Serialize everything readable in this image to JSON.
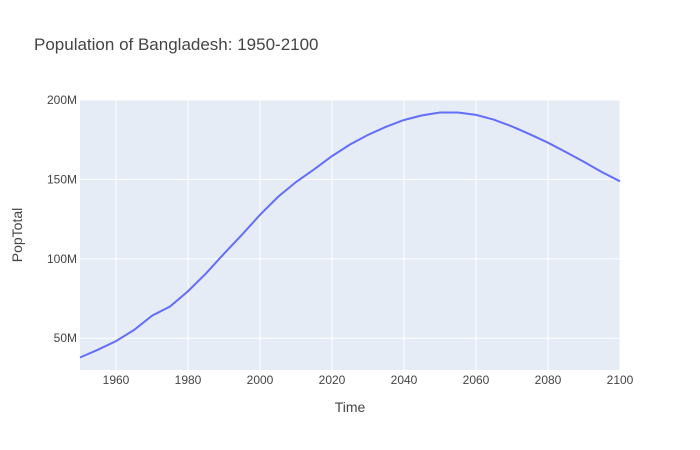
{
  "chart_data": {
    "type": "line",
    "title": "Population of Bangladesh: 1950-2100",
    "xlabel": "Time",
    "ylabel": "PopTotal",
    "xlim": [
      1950,
      2100
    ],
    "ylim": [
      30,
      200
    ],
    "x_ticks": [
      1960,
      1980,
      2000,
      2020,
      2040,
      2060,
      2080,
      2100
    ],
    "x_tick_labels": [
      "1960",
      "1980",
      "2000",
      "2020",
      "2040",
      "2060",
      "2080",
      "2100"
    ],
    "y_ticks": [
      50,
      100,
      150,
      200
    ],
    "y_tick_labels": [
      "50M",
      "100M",
      "150M",
      "200M"
    ],
    "grid": true,
    "plot_background": "#e5ecf6",
    "series_color": "#636efa",
    "series": [
      {
        "x": [
          1950,
          1955,
          1960,
          1965,
          1970,
          1975,
          1980,
          1985,
          1990,
          1995,
          2000,
          2005,
          2010,
          2015,
          2020,
          2025,
          2030,
          2035,
          2040,
          2045,
          2050,
          2055,
          2060,
          2065,
          2070,
          2075,
          2080,
          2085,
          2090,
          2095,
          2100
        ],
        "y": [
          37.9,
          42.8,
          48.2,
          55.2,
          64.2,
          70.0,
          79.6,
          90.8,
          103.2,
          115.2,
          127.7,
          139.0,
          148.4,
          156.3,
          164.7,
          172.0,
          178.0,
          183.1,
          187.4,
          190.3,
          192.1,
          192.1,
          190.6,
          187.6,
          183.4,
          178.4,
          173.1,
          167.2,
          161.0,
          154.6,
          148.8
        ]
      }
    ]
  }
}
